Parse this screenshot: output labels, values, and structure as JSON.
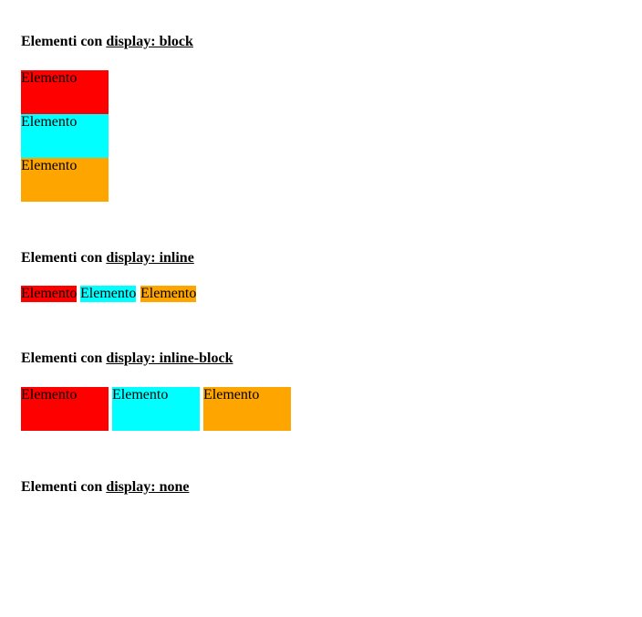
{
  "sections": [
    {
      "prefix": "Elementi con ",
      "code": "display: block"
    },
    {
      "prefix": "Elementi con ",
      "code": "display: inline"
    },
    {
      "prefix": "Elementi con ",
      "code": "display: inline-block"
    },
    {
      "prefix": "Elementi con ",
      "code": "display: none"
    }
  ],
  "element_label": "Elemento",
  "colors": {
    "red": "#ff0000",
    "cyan": "#00ffff",
    "orange": "#ffa500"
  }
}
